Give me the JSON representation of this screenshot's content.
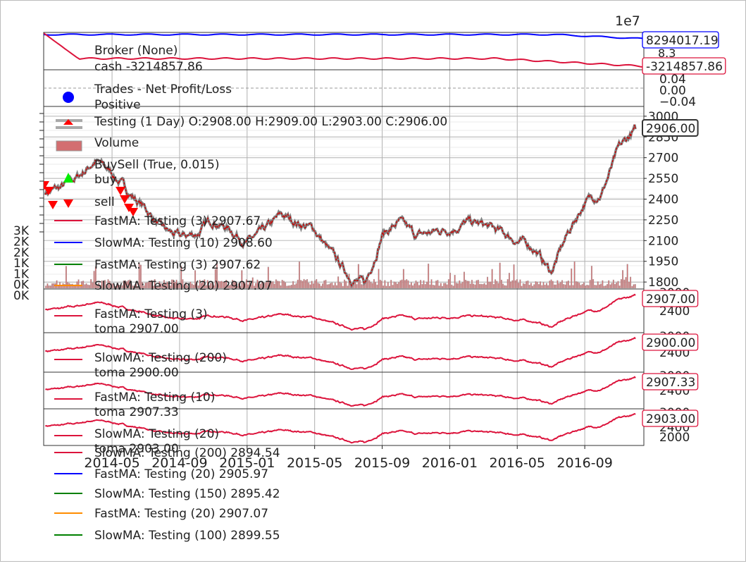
{
  "chart_data": [
    {
      "type": "line",
      "panel": "broker",
      "title": "",
      "exponent_label": "1e7",
      "legend": [
        "Broker (None)",
        "cash -3214857.86"
      ],
      "series": [
        {
          "name": "value",
          "color": "#0000ff",
          "last_value_label": "8294017.19",
          "x": [
            "2014-01",
            "2014-09",
            "2015-09",
            "2016-09",
            "2016-12"
          ],
          "values": [
            8700000,
            8600000,
            8750000,
            8600000,
            8294017
          ]
        },
        {
          "name": "cash",
          "color": "#dc143c",
          "last_value_label": "-3214857.86",
          "x": [
            "2014-01",
            "2014-03",
            "2015-09",
            "2016-09",
            "2016-12"
          ],
          "values": [
            10000000,
            -1500000,
            -1800000,
            -2400000,
            -3214858
          ]
        }
      ],
      "ytick_labels": [
        "8.3"
      ]
    },
    {
      "type": "scatter",
      "panel": "trades",
      "legend": [
        "Trades - Net Profit/Loss",
        "Positive"
      ],
      "ytick_labels": [
        "0.04",
        "0.00",
        "−0.04"
      ],
      "ylim": [
        -0.06,
        0.06
      ]
    },
    {
      "type": "line",
      "panel": "main",
      "legend": [
        {
          "label": "Testing (1 Day) O:2908.00 H:2909.00 L:2903.00 C:2906.00",
          "color": "#808080"
        },
        {
          "label": "Volume",
          "color": "#d36e70"
        },
        {
          "label": "BuySell (True, 0.015)",
          "color": ""
        },
        {
          "label": "buy",
          "color": "#00cc00"
        },
        {
          "label": "sell",
          "color": "#ff0000"
        },
        {
          "label": "FastMA: Testing (3) 2907.67",
          "color": "#dc143c"
        },
        {
          "label": "SlowMA: Testing (10) 2908.60",
          "color": "#0000ff"
        },
        {
          "label": "FastMA: Testing (3) 2907.62",
          "color": "#008000"
        },
        {
          "label": "SlowMA: Testing (20) 2907.07",
          "color": "#ff8c00"
        },
        {
          "label": "SlowMA: Testing (200) 2894.54",
          "color": "#dc143c"
        },
        {
          "label": "FastMA: Testing (20) 2905.97",
          "color": "#0000ff"
        },
        {
          "label": "SlowMA: Testing (150) 2895.42",
          "color": "#008000"
        },
        {
          "label": "FastMA: Testing (20) 2907.07",
          "color": "#ff8c00"
        },
        {
          "label": "SlowMA: Testing (100) 2899.55",
          "color": "#008000"
        }
      ],
      "ylim": [
        1770,
        3030
      ],
      "ytick_labels": [
        "1800",
        "1950",
        "2100",
        "2250",
        "2400",
        "2550",
        "2700",
        "2850",
        "3000"
      ],
      "volume_ytick_labels": [
        "0K",
        "0K",
        "1K",
        "1K",
        "2K",
        "2K",
        "3K"
      ],
      "last_value_label": "2906.00",
      "price_keypoints": {
        "x": [
          "2014-01",
          "2014-02",
          "2014-03",
          "2014-04",
          "2014-05",
          "2014-06",
          "2014-07",
          "2014-08",
          "2014-09",
          "2014-10",
          "2014-11",
          "2014-12",
          "2015-01",
          "2015-02",
          "2015-03",
          "2015-04",
          "2015-05",
          "2015-06",
          "2015-07",
          "2015-08",
          "2015-09",
          "2015-10",
          "2015-11",
          "2015-12",
          "2016-01",
          "2016-02",
          "2016-03",
          "2016-04",
          "2016-05",
          "2016-06",
          "2016-07",
          "2016-08",
          "2016-09",
          "2016-10",
          "2016-11",
          "2016-12"
        ],
        "values": [
          2450,
          2480,
          2560,
          2680,
          2590,
          2450,
          2330,
          2180,
          2120,
          2150,
          2250,
          2180,
          2090,
          2160,
          2280,
          2230,
          2180,
          2000,
          1850,
          1780,
          2150,
          2230,
          2130,
          2160,
          2190,
          2230,
          2210,
          2160,
          2100,
          2050,
          1870,
          2150,
          2380,
          2450,
          2750,
          2906
        ]
      }
    },
    {
      "type": "line",
      "panel": "ind1",
      "legend": [
        "FastMA: Testing (3)",
        "toma 2907.00"
      ],
      "last_value_label": "2907.00",
      "ytick_labels": [
        "2400",
        "3000"
      ]
    },
    {
      "type": "line",
      "panel": "ind2",
      "legend": [
        "SlowMA: Testing (200)",
        "toma 2900.00"
      ],
      "last_value_label": "2900.00",
      "ytick_labels": [
        "2400",
        "3000"
      ]
    },
    {
      "type": "line",
      "panel": "ind3",
      "legend": [
        "FastMA: Testing (10)",
        "toma 2907.33"
      ],
      "last_value_label": "2907.33",
      "ytick_labels": [
        "2400",
        "3000"
      ]
    },
    {
      "type": "line",
      "panel": "ind4",
      "legend": [
        "SlowMA: Testing (20)",
        "toma 2903.00"
      ],
      "last_value_label": "2903.00",
      "ytick_labels": [
        "2000",
        "2400",
        "3000"
      ]
    }
  ],
  "x_axis": {
    "tick_labels": [
      "2014-05",
      "2014-09",
      "2015-01",
      "2015-05",
      "2015-09",
      "2016-01",
      "2016-05",
      "2016-09"
    ]
  }
}
